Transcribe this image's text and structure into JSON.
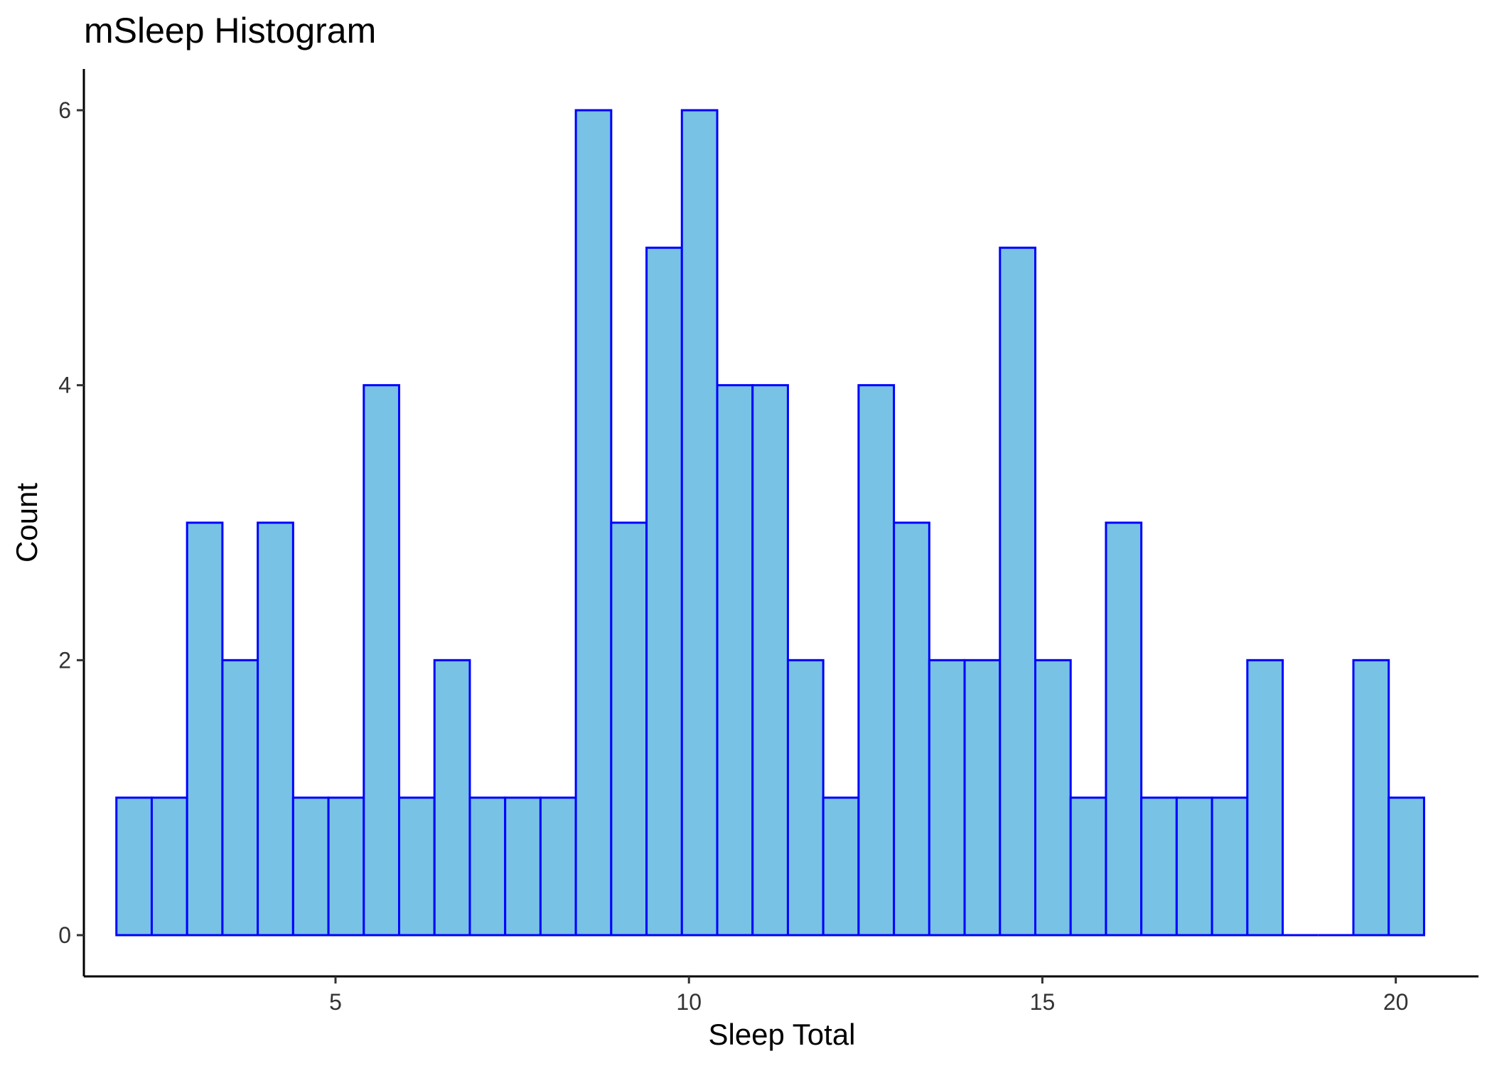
{
  "chart_data": {
    "type": "bar",
    "title": "mSleep Histogram",
    "xlabel": "Sleep Total",
    "ylabel": "Count",
    "x_ticks": [
      5,
      10,
      15,
      20
    ],
    "y_ticks": [
      0,
      2,
      4,
      6
    ],
    "xlim": [
      1.44,
      21.17
    ],
    "ylim": [
      -0.3,
      6.3
    ],
    "binwidth": 0.5,
    "bins": [
      {
        "start": 1.9,
        "count": 1
      },
      {
        "start": 2.4,
        "count": 1
      },
      {
        "start": 2.9,
        "count": 3
      },
      {
        "start": 3.4,
        "count": 2
      },
      {
        "start": 3.9,
        "count": 3
      },
      {
        "start": 4.4,
        "count": 1
      },
      {
        "start": 4.9,
        "count": 1
      },
      {
        "start": 5.4,
        "count": 4
      },
      {
        "start": 5.9,
        "count": 1
      },
      {
        "start": 6.4,
        "count": 2
      },
      {
        "start": 6.9,
        "count": 1
      },
      {
        "start": 7.4,
        "count": 1
      },
      {
        "start": 7.9,
        "count": 1
      },
      {
        "start": 8.4,
        "count": 6
      },
      {
        "start": 8.9,
        "count": 3
      },
      {
        "start": 9.4,
        "count": 5
      },
      {
        "start": 9.9,
        "count": 6
      },
      {
        "start": 10.4,
        "count": 4
      },
      {
        "start": 10.9,
        "count": 4
      },
      {
        "start": 11.4,
        "count": 2
      },
      {
        "start": 11.9,
        "count": 1
      },
      {
        "start": 12.4,
        "count": 4
      },
      {
        "start": 12.9,
        "count": 3
      },
      {
        "start": 13.4,
        "count": 2
      },
      {
        "start": 13.9,
        "count": 2
      },
      {
        "start": 14.4,
        "count": 5
      },
      {
        "start": 14.9,
        "count": 2
      },
      {
        "start": 15.4,
        "count": 1
      },
      {
        "start": 15.9,
        "count": 3
      },
      {
        "start": 16.4,
        "count": 1
      },
      {
        "start": 16.9,
        "count": 1
      },
      {
        "start": 17.4,
        "count": 1
      },
      {
        "start": 17.9,
        "count": 2
      },
      {
        "start": 18.4,
        "count": 0
      },
      {
        "start": 18.9,
        "count": 0
      },
      {
        "start": 19.4,
        "count": 2
      },
      {
        "start": 19.9,
        "count": 1
      }
    ],
    "fill_color": "#78C2E6",
    "outline_color": "#0000FF",
    "grid": false,
    "legend": "none"
  }
}
